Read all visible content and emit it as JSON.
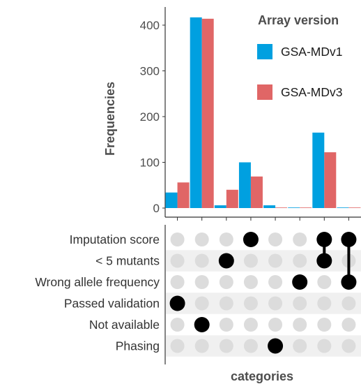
{
  "chart_data": {
    "type": "bar",
    "subtype": "upset",
    "categories": [
      "c1",
      "c2",
      "c3",
      "c4",
      "c5",
      "c6",
      "c7",
      "c8"
    ],
    "series": [
      {
        "name": "GSA-MDv1",
        "color": "#00A0E0",
        "values": [
          34,
          417,
          6,
          100,
          6,
          0,
          165,
          0
        ]
      },
      {
        "name": "GSA-MDv3",
        "color": "#E06666",
        "values": [
          56,
          414,
          40,
          69,
          1,
          1,
          122,
          1
        ]
      }
    ],
    "ylabel": "Frequencies",
    "xlabel": "categories",
    "ylim": [
      0,
      450
    ],
    "yticks": [
      0,
      100,
      200,
      300,
      400
    ],
    "legend": {
      "title": "Array version",
      "position": "top-right"
    },
    "sets": [
      "Imputation score",
      "< 5 mutants",
      "Wrong allele frequency",
      "Passed validation",
      "Not available",
      "Phasing"
    ],
    "membership": [
      [
        "Passed validation"
      ],
      [
        "Not available"
      ],
      [
        "< 5 mutants"
      ],
      [
        "Imputation score"
      ],
      [
        "Phasing"
      ],
      [
        "Wrong allele frequency"
      ],
      [
        "Imputation score",
        "< 5 mutants"
      ],
      [
        "Imputation score",
        "Wrong allele frequency"
      ]
    ],
    "dot_colors": {
      "active": "#000000",
      "inactive": "#dcdcdc",
      "band": "#f0f0f0"
    }
  }
}
